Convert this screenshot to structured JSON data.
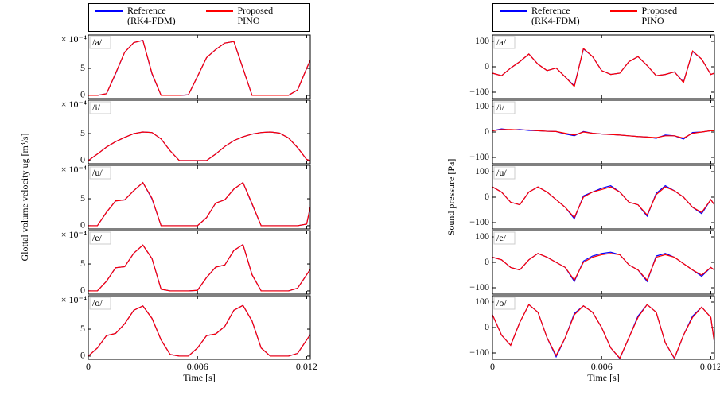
{
  "chart_data": [
    {
      "type": "line",
      "label": "/a/",
      "offset_text": "× 10⁻⁴",
      "xlim": [
        0,
        0.0122
      ],
      "xticks": [
        0,
        0.006,
        0.012
      ],
      "ylim": [
        -0.6,
        11.2
      ],
      "yticks": [
        0,
        5
      ],
      "x": [
        0,
        0.0005,
        0.001,
        0.0015,
        0.002,
        0.0025,
        0.003,
        0.0035,
        0.004,
        0.0045,
        0.005,
        0.0055,
        0.006,
        0.0065,
        0.007,
        0.0075,
        0.008,
        0.0085,
        0.009,
        0.0095,
        0.01,
        0.0105,
        0.011,
        0.0115,
        0.012,
        0.0122
      ],
      "series": [
        {
          "name": "Reference (RK4-FDM)",
          "color": "#0000ff",
          "values": [
            0,
            0,
            0.3,
            4,
            8,
            9.8,
            10.2,
            4,
            0,
            0,
            0,
            0.1,
            3.5,
            7,
            8.5,
            9.7,
            10,
            5,
            0,
            0,
            0,
            0,
            0,
            1,
            5,
            6.5
          ]
        },
        {
          "name": "Proposed PINO",
          "color": "#ff0000",
          "values": [
            0,
            0,
            0.3,
            4.1,
            8,
            9.8,
            10.2,
            4.1,
            0,
            0,
            0,
            0.1,
            3.5,
            7,
            8.5,
            9.7,
            10,
            5,
            0,
            0,
            0,
            0,
            0,
            1,
            5,
            6.5
          ]
        }
      ]
    },
    {
      "type": "line",
      "label": "/i/",
      "offset_text": "× 10⁻⁴",
      "xlim": [
        0,
        0.0122
      ],
      "xticks": [
        0,
        0.006,
        0.012
      ],
      "ylim": [
        -0.6,
        11.2
      ],
      "yticks": [
        0,
        5
      ],
      "x": [
        0,
        0.0005,
        0.001,
        0.0015,
        0.002,
        0.0025,
        0.003,
        0.0035,
        0.004,
        0.0045,
        0.005,
        0.0055,
        0.006,
        0.0065,
        0.007,
        0.0075,
        0.008,
        0.0085,
        0.009,
        0.0095,
        0.01,
        0.0105,
        0.011,
        0.0115,
        0.012,
        0.0122
      ],
      "series": [
        {
          "color": "#0000ff",
          "values": [
            0,
            1.2,
            2.5,
            3.5,
            4.3,
            5,
            5.3,
            5.2,
            4,
            1.8,
            0,
            0,
            0,
            0,
            1.2,
            2.6,
            3.7,
            4.4,
            4.9,
            5.2,
            5.3,
            5.1,
            4.2,
            2.4,
            0.2,
            0
          ]
        },
        {
          "color": "#ff0000",
          "values": [
            0,
            1.2,
            2.5,
            3.5,
            4.3,
            5,
            5.3,
            5.2,
            4,
            1.8,
            0,
            0,
            0,
            0,
            1.2,
            2.6,
            3.7,
            4.4,
            4.9,
            5.2,
            5.3,
            5.1,
            4.2,
            2.4,
            0.2,
            0
          ]
        }
      ]
    },
    {
      "type": "line",
      "label": "/u/",
      "offset_text": "× 10⁻⁴",
      "ylabel": "Glottal volume velocity ug [m³/s]",
      "xlim": [
        0,
        0.0122
      ],
      "xticks": [
        0,
        0.006,
        0.012
      ],
      "ylim": [
        -0.6,
        11.2
      ],
      "yticks": [
        0,
        5
      ],
      "x": [
        0,
        0.0005,
        0.001,
        0.0015,
        0.002,
        0.0025,
        0.003,
        0.0035,
        0.004,
        0.0045,
        0.005,
        0.0055,
        0.006,
        0.0065,
        0.007,
        0.0075,
        0.008,
        0.0085,
        0.009,
        0.0095,
        0.01,
        0.0105,
        0.011,
        0.0115,
        0.012,
        0.0122
      ],
      "series": [
        {
          "color": "#0000ff",
          "values": [
            0,
            0,
            2.5,
            4.6,
            4.8,
            6.5,
            8,
            5,
            0,
            0,
            0,
            0,
            0,
            1.5,
            4.2,
            4.8,
            6.8,
            8,
            4,
            0,
            0,
            0,
            0,
            0,
            0.3,
            3.5
          ]
        },
        {
          "color": "#ff0000",
          "values": [
            0,
            0,
            2.5,
            4.6,
            4.8,
            6.5,
            8,
            5.1,
            0,
            0,
            0,
            0,
            0,
            1.5,
            4.2,
            4.8,
            6.8,
            8,
            4.1,
            0,
            0,
            0,
            0,
            0,
            0.3,
            3.5
          ]
        }
      ]
    },
    {
      "type": "line",
      "label": "/e/",
      "offset_text": "× 10⁻⁴",
      "xlim": [
        0,
        0.0122
      ],
      "xticks": [
        0,
        0.006,
        0.012
      ],
      "ylim": [
        -0.6,
        11.2
      ],
      "yticks": [
        0,
        5
      ],
      "x": [
        0,
        0.0005,
        0.001,
        0.0015,
        0.002,
        0.0025,
        0.003,
        0.0035,
        0.004,
        0.0045,
        0.005,
        0.0055,
        0.006,
        0.0065,
        0.007,
        0.0075,
        0.008,
        0.0085,
        0.009,
        0.0095,
        0.01,
        0.0105,
        0.011,
        0.0115,
        0.012,
        0.0122
      ],
      "series": [
        {
          "color": "#0000ff",
          "values": [
            0,
            0,
            1.8,
            4.3,
            4.5,
            7,
            8.5,
            6,
            0.3,
            0,
            0,
            0,
            0.1,
            2.5,
            4.4,
            4.8,
            7.5,
            8.6,
            3,
            0,
            0,
            0,
            0,
            0.5,
            3,
            4
          ]
        },
        {
          "color": "#ff0000",
          "values": [
            0,
            0,
            1.8,
            4.3,
            4.5,
            7,
            8.5,
            6,
            0.3,
            0,
            0,
            0,
            0.1,
            2.5,
            4.4,
            4.8,
            7.5,
            8.6,
            3,
            0,
            0,
            0,
            0,
            0.5,
            3,
            4
          ]
        }
      ]
    },
    {
      "type": "line",
      "label": "/o/",
      "offset_text": "× 10⁻⁴",
      "xlabel": "Time [s]",
      "xlim": [
        0,
        0.0122
      ],
      "xticks": [
        0,
        0.006,
        0.012
      ],
      "ylim": [
        -0.6,
        11.2
      ],
      "yticks": [
        0,
        5
      ],
      "x": [
        0,
        0.0005,
        0.001,
        0.0015,
        0.002,
        0.0025,
        0.003,
        0.0035,
        0.004,
        0.0045,
        0.005,
        0.0055,
        0.006,
        0.0065,
        0.007,
        0.0075,
        0.008,
        0.0085,
        0.009,
        0.0095,
        0.01,
        0.0105,
        0.011,
        0.0115,
        0.012,
        0.0122
      ],
      "series": [
        {
          "color": "#0000ff",
          "values": [
            0,
            1.5,
            3.8,
            4.2,
            6,
            8.5,
            9.3,
            7,
            3,
            0.3,
            0,
            0,
            1.5,
            3.8,
            4.1,
            5.5,
            8.5,
            9.4,
            6.5,
            1.5,
            0,
            0,
            0,
            0.5,
            3,
            4
          ]
        },
        {
          "color": "#ff0000",
          "values": [
            0,
            1.5,
            3.8,
            4.2,
            6,
            8.5,
            9.3,
            7,
            3,
            0.3,
            0,
            0,
            1.5,
            3.8,
            4.1,
            5.5,
            8.5,
            9.4,
            6.5,
            1.5,
            0,
            0,
            0,
            0.5,
            3,
            4
          ]
        }
      ]
    },
    {
      "type": "line",
      "label": "/a/",
      "xlim": [
        0,
        0.0122
      ],
      "xticks": [
        0,
        0.006,
        0.012
      ],
      "ylim": [
        -125,
        125
      ],
      "yticks": [
        {
          "value": -100,
          "label": "−100"
        },
        0,
        100
      ],
      "x": [
        0,
        0.0005,
        0.001,
        0.0015,
        0.002,
        0.0025,
        0.003,
        0.0035,
        0.004,
        0.0045,
        0.005,
        0.0055,
        0.006,
        0.0065,
        0.007,
        0.0075,
        0.008,
        0.0085,
        0.009,
        0.0095,
        0.01,
        0.0105,
        0.011,
        0.0115,
        0.012,
        0.0122
      ],
      "series": [
        {
          "name": "Reference (RK4-FDM)",
          "color": "#0000ff",
          "values": [
            -25,
            -35,
            -5,
            20,
            50,
            10,
            -15,
            -5,
            -40,
            -75,
            70,
            40,
            -15,
            -30,
            -25,
            20,
            40,
            5,
            -35,
            -30,
            -20,
            -60,
            60,
            30,
            -30,
            -25
          ]
        },
        {
          "name": "Proposed PINO",
          "color": "#ff0000",
          "values": [
            -25,
            -35,
            -5,
            20,
            50,
            10,
            -15,
            -5,
            -40,
            -78,
            72,
            40,
            -15,
            -30,
            -25,
            20,
            40,
            5,
            -35,
            -30,
            -20,
            -62,
            62,
            30,
            -30,
            -25
          ]
        }
      ]
    },
    {
      "type": "line",
      "label": "/i/",
      "xlim": [
        0,
        0.0122
      ],
      "xticks": [
        0,
        0.006,
        0.012
      ],
      "ylim": [
        -125,
        125
      ],
      "yticks": [
        {
          "value": -100,
          "label": "−100"
        },
        0,
        100
      ],
      "x": [
        0,
        0.0005,
        0.001,
        0.0015,
        0.002,
        0.0025,
        0.003,
        0.0035,
        0.004,
        0.0045,
        0.005,
        0.0055,
        0.006,
        0.0065,
        0.007,
        0.0075,
        0.008,
        0.0085,
        0.009,
        0.0095,
        0.01,
        0.0105,
        0.011,
        0.0115,
        0.012,
        0.0122
      ],
      "series": [
        {
          "color": "#0000ff",
          "values": [
            5,
            12,
            8,
            10,
            6,
            5,
            3,
            2,
            -8,
            -15,
            2,
            -5,
            -8,
            -10,
            -12,
            -15,
            -18,
            -20,
            -25,
            -12,
            -15,
            -28,
            -2,
            0,
            5,
            5
          ]
        },
        {
          "color": "#ff0000",
          "values": [
            5,
            10,
            10,
            8,
            8,
            5,
            3,
            2,
            -5,
            -12,
            0,
            -5,
            -8,
            -10,
            -12,
            -15,
            -18,
            -20,
            -22,
            -15,
            -15,
            -24,
            -5,
            0,
            5,
            5
          ]
        }
      ]
    },
    {
      "type": "line",
      "label": "/u/",
      "ylabel": "Sound pressure [Pa]",
      "xlim": [
        0,
        0.0122
      ],
      "xticks": [
        0,
        0.006,
        0.012
      ],
      "ylim": [
        -125,
        125
      ],
      "yticks": [
        {
          "value": -100,
          "label": "−100"
        },
        0,
        100
      ],
      "x": [
        0,
        0.0005,
        0.001,
        0.0015,
        0.002,
        0.0025,
        0.003,
        0.0035,
        0.004,
        0.0045,
        0.005,
        0.0055,
        0.006,
        0.0065,
        0.007,
        0.0075,
        0.008,
        0.0085,
        0.009,
        0.0095,
        0.01,
        0.0105,
        0.011,
        0.0115,
        0.012,
        0.0122
      ],
      "series": [
        {
          "color": "#0000ff",
          "values": [
            40,
            20,
            -20,
            -30,
            20,
            40,
            20,
            -10,
            -40,
            -85,
            5,
            20,
            35,
            45,
            20,
            -20,
            -30,
            -75,
            15,
            45,
            25,
            0,
            -40,
            -65,
            -10,
            -30
          ]
        },
        {
          "color": "#ff0000",
          "values": [
            40,
            20,
            -20,
            -30,
            20,
            40,
            20,
            -10,
            -40,
            -80,
            0,
            20,
            30,
            40,
            20,
            -20,
            -30,
            -70,
            10,
            40,
            25,
            0,
            -40,
            -60,
            -10,
            -30
          ]
        }
      ]
    },
    {
      "type": "line",
      "label": "/e/",
      "xlim": [
        0,
        0.0122
      ],
      "xticks": [
        0,
        0.006,
        0.012
      ],
      "ylim": [
        -125,
        125
      ],
      "yticks": [
        {
          "value": -100,
          "label": "−100"
        },
        0,
        100
      ],
      "x": [
        0,
        0.0005,
        0.001,
        0.0015,
        0.002,
        0.0025,
        0.003,
        0.0035,
        0.004,
        0.0045,
        0.005,
        0.0055,
        0.006,
        0.0065,
        0.007,
        0.0075,
        0.008,
        0.0085,
        0.009,
        0.0095,
        0.01,
        0.0105,
        0.011,
        0.0115,
        0.012,
        0.0122
      ],
      "series": [
        {
          "color": "#0000ff",
          "values": [
            20,
            10,
            -20,
            -30,
            10,
            35,
            20,
            0,
            -20,
            -75,
            5,
            25,
            35,
            40,
            30,
            -10,
            -30,
            -75,
            25,
            35,
            20,
            -5,
            -30,
            -55,
            -20,
            -30
          ]
        },
        {
          "color": "#ff0000",
          "values": [
            20,
            10,
            -20,
            -30,
            10,
            35,
            20,
            0,
            -20,
            -70,
            0,
            20,
            30,
            35,
            30,
            -10,
            -30,
            -70,
            20,
            30,
            20,
            -5,
            -30,
            -50,
            -20,
            -30
          ]
        }
      ]
    },
    {
      "type": "line",
      "label": "/o/",
      "xlabel": "Time [s]",
      "xlim": [
        0,
        0.0122
      ],
      "xticks": [
        0,
        0.006,
        0.012
      ],
      "ylim": [
        -125,
        125
      ],
      "yticks": [
        {
          "value": -100,
          "label": "−100"
        },
        0,
        100
      ],
      "x": [
        0,
        0.0005,
        0.001,
        0.0015,
        0.002,
        0.0025,
        0.003,
        0.0035,
        0.004,
        0.0045,
        0.005,
        0.0055,
        0.006,
        0.0065,
        0.007,
        0.0075,
        0.008,
        0.0085,
        0.009,
        0.0095,
        0.01,
        0.0105,
        0.011,
        0.0115,
        0.012,
        0.0122
      ],
      "series": [
        {
          "color": "#0000ff",
          "values": [
            50,
            -30,
            -70,
            20,
            90,
            60,
            -40,
            -115,
            -40,
            55,
            85,
            60,
            0,
            -80,
            -122,
            -40,
            45,
            90,
            60,
            -60,
            -122,
            -30,
            45,
            80,
            40,
            -60
          ]
        },
        {
          "color": "#ff0000",
          "values": [
            50,
            -30,
            -70,
            20,
            90,
            60,
            -40,
            -110,
            -40,
            50,
            85,
            60,
            0,
            -80,
            -120,
            -40,
            40,
            90,
            60,
            -60,
            -120,
            -30,
            40,
            80,
            40,
            -60
          ]
        }
      ]
    }
  ]
}
